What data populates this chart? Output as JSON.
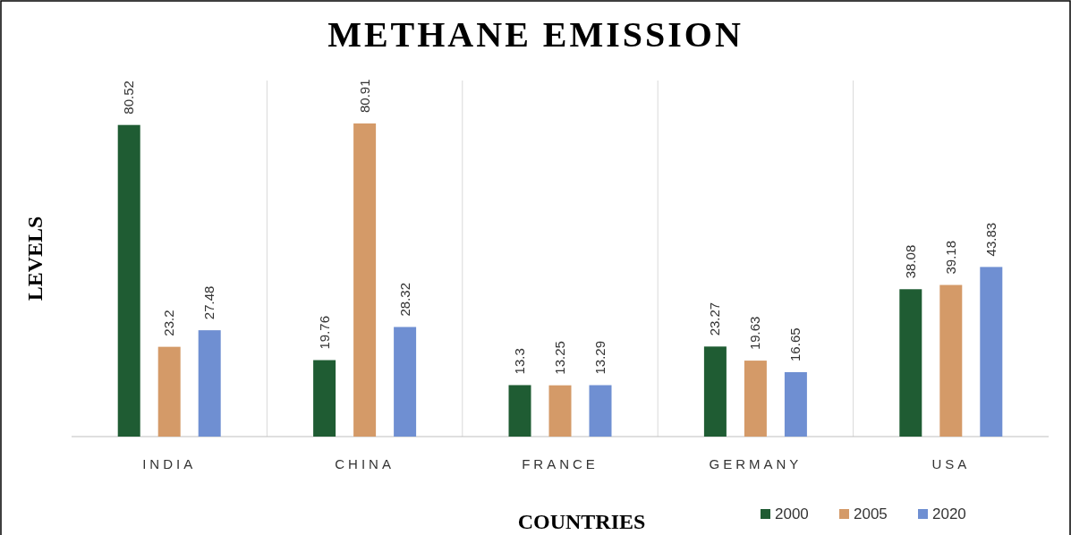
{
  "chart_data": {
    "type": "bar",
    "title": "METHANE EMISSION",
    "xlabel": "COUNTRIES",
    "ylabel": "LEVELS",
    "categories": [
      "INDIA",
      "CHINA",
      "FRANCE",
      "GERMANY",
      "USA"
    ],
    "series": [
      {
        "name": "2000",
        "color": "#1f5c33",
        "values": [
          80.52,
          19.76,
          13.3,
          23.27,
          38.08
        ]
      },
      {
        "name": "2005",
        "color": "#d49a68",
        "values": [
          23.2,
          80.91,
          13.25,
          19.63,
          39.18
        ]
      },
      {
        "name": "2020",
        "color": "#6f8fd2",
        "values": [
          27.48,
          28.32,
          13.29,
          16.65,
          43.83
        ]
      }
    ],
    "data_labels": true,
    "grid": "x",
    "legend": "bottom right"
  }
}
